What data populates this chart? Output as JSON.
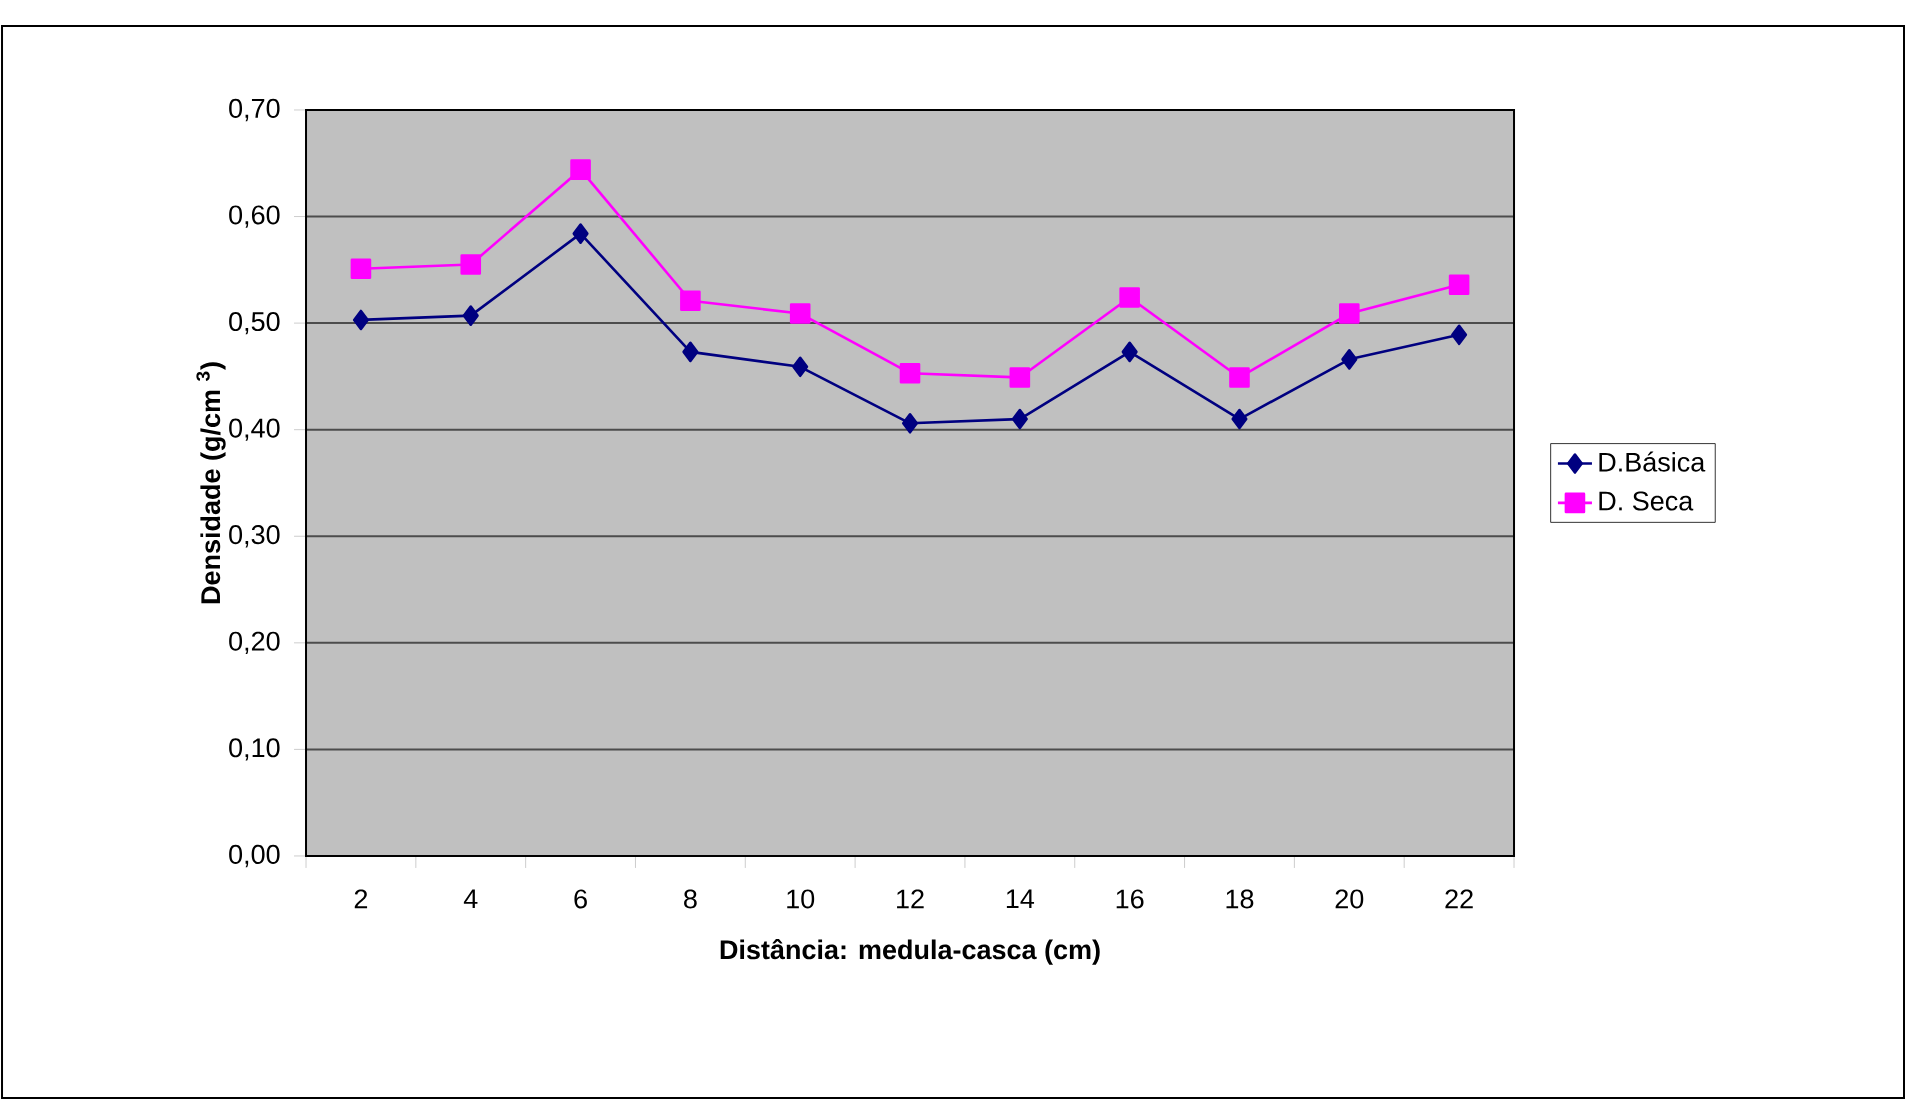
{
  "chart_data": {
    "type": "line",
    "xlabel": "Distância: medula-casca (cm)",
    "ylabel": "Densidade (g/cm $^{3}$)",
    "categories": [
      "2",
      "4",
      "6",
      "8",
      "10",
      "12",
      "14",
      "16",
      "18",
      "20",
      "22"
    ],
    "series": [
      {
        "name": "D.Básica",
        "color": "#000080",
        "marker": "diamond",
        "values": [
          0.503,
          0.507,
          0.584,
          0.473,
          0.459,
          0.406,
          0.41,
          0.473,
          0.41,
          0.466,
          0.489
        ]
      },
      {
        "name": "D. Seca",
        "color": "#ff00ff",
        "marker": "square",
        "values": [
          0.551,
          0.555,
          0.644,
          0.521,
          0.509,
          0.453,
          0.449,
          0.524,
          0.449,
          0.509,
          0.536
        ]
      }
    ],
    "ylim": [
      0,
      0.7
    ],
    "yticks": [
      {
        "value": 0,
        "label": "0,00"
      },
      {
        "value": 0.1,
        "label": "0,10"
      },
      {
        "value": 0.2,
        "label": "0,20"
      },
      {
        "value": 0.3,
        "label": "0,30"
      },
      {
        "value": 0.4,
        "label": "0,40"
      },
      {
        "value": 0.5,
        "label": "0,50"
      },
      {
        "value": 0.6,
        "label": "0,60"
      },
      {
        "value": 0.7,
        "label": "0,70"
      }
    ],
    "grid": "y",
    "legend": "right"
  }
}
